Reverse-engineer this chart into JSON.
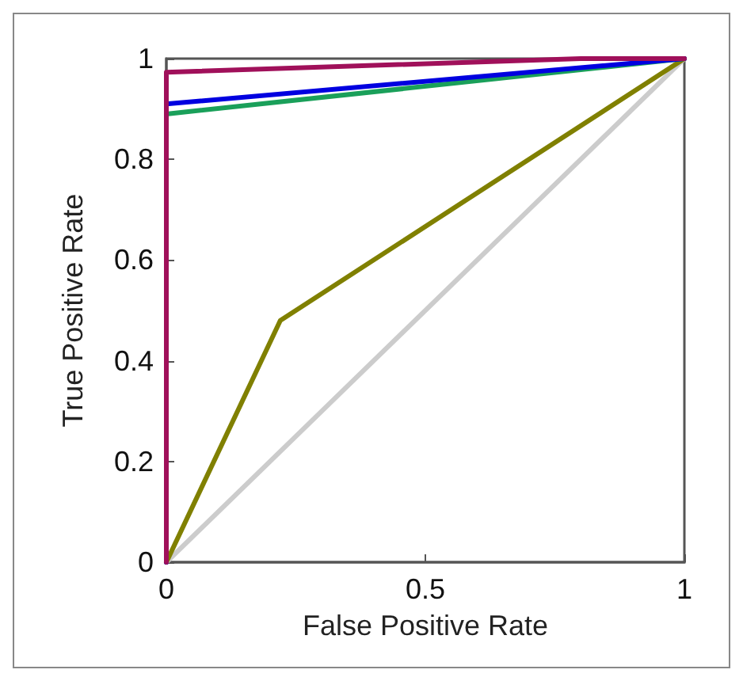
{
  "chart_data": {
    "type": "line",
    "xlabel": "False Positive Rate",
    "ylabel": "True Positive Rate",
    "xlim": [
      0,
      1
    ],
    "ylim": [
      0,
      1
    ],
    "xticks": [
      0,
      0.5,
      1
    ],
    "yticks": [
      0,
      0.2,
      0.4,
      0.6,
      0.8,
      1
    ],
    "grid": false,
    "marker": "none",
    "line_style": "solid",
    "series": [
      {
        "color": "#cccccc",
        "x": [
          0,
          1
        ],
        "values": [
          0,
          1
        ]
      },
      {
        "color": "#808000",
        "x": [
          0,
          0.22,
          1
        ],
        "values": [
          0,
          0.48,
          1
        ]
      },
      {
        "color": "#1aa05a",
        "x": [
          0,
          0,
          1
        ],
        "values": [
          0,
          0.89,
          1
        ]
      },
      {
        "color": "#0000e0",
        "x": [
          0,
          0,
          1
        ],
        "values": [
          0,
          0.91,
          1
        ]
      },
      {
        "color": "#a0105a",
        "x": [
          0,
          0,
          0.8,
          1
        ],
        "values": [
          0,
          0.973,
          1,
          1
        ]
      }
    ]
  }
}
